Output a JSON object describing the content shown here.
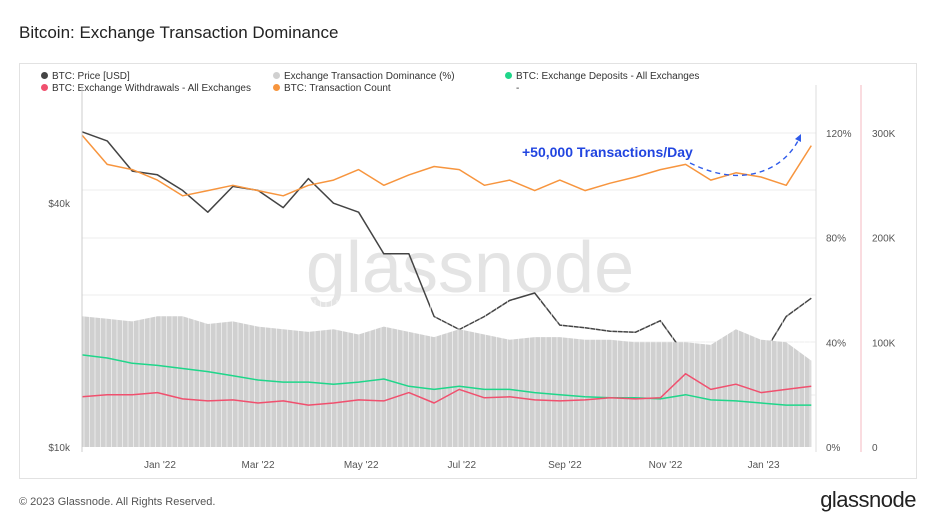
{
  "title": "Bitcoin: Exchange Transaction Dominance",
  "footer": "© 2023 Glassnode. All Rights Reserved.",
  "brand": "glassnode",
  "watermark": "glassnode",
  "annotation": "+50,000 Transactions/Day",
  "legend": [
    {
      "label": "BTC: Price [USD]",
      "color": "#444444"
    },
    {
      "label": "Exchange Transaction Dominance (%)",
      "color": "#d0d0d0"
    },
    {
      "label": "BTC: Exchange Deposits - All Exchanges",
      "color": "#1fd68a"
    },
    {
      "label": "BTC: Exchange Withdrawals - All Exchanges",
      "color": "#f0506e"
    },
    {
      "label": "BTC: Transaction Count",
      "color": "#f7953e"
    },
    {
      "label": "-",
      "color": ""
    }
  ],
  "chart_data": {
    "type": "line",
    "title": "Bitcoin: Exchange Transaction Dominance",
    "x_unit": "months since 2021-11-15",
    "x": [
      0,
      0.5,
      1,
      1.5,
      2,
      2.5,
      3,
      3.5,
      4,
      4.5,
      5,
      5.5,
      6,
      6.5,
      7,
      7.5,
      8,
      8.5,
      9,
      9.5,
      10,
      10.5,
      11,
      11.5,
      12,
      12.5,
      13,
      13.5,
      14,
      14.5
    ],
    "x_tick_labels": [
      {
        "t": 1.55,
        "label": "Jan '22"
      },
      {
        "t": 3.5,
        "label": "Mar '22"
      },
      {
        "t": 5.55,
        "label": "May '22"
      },
      {
        "t": 7.55,
        "label": "Jul '22"
      },
      {
        "t": 9.6,
        "label": "Sep '22"
      },
      {
        "t": 11.6,
        "label": "Nov '22"
      },
      {
        "t": 13.55,
        "label": "Jan '23"
      }
    ],
    "axes": {
      "price": {
        "scale": "log",
        "range": [
          10000,
          230000
        ],
        "ticks": [
          {
            "v": 10000,
            "label": "$10k"
          },
          {
            "v": 40000,
            "label": "$40k"
          }
        ]
      },
      "percent": {
        "range": [
          0,
          120
        ],
        "ticks": [
          {
            "v": 0,
            "label": "0%"
          },
          {
            "v": 40,
            "label": "40%"
          },
          {
            "v": 80,
            "label": "80%"
          },
          {
            "v": 120,
            "label": "120%"
          }
        ]
      },
      "count": {
        "range": [
          0,
          300000
        ],
        "ticks": [
          {
            "v": 0,
            "label": "0"
          },
          {
            "v": 100000,
            "label": "100K"
          },
          {
            "v": 200000,
            "label": "200K"
          },
          {
            "v": 300000,
            "label": "300K"
          }
        ]
      }
    },
    "series": [
      {
        "name": "BTC: Price [USD]",
        "axis": "price",
        "color": "#444444",
        "values": [
          60000,
          57000,
          48000,
          47000,
          43000,
          38000,
          44000,
          43000,
          39000,
          46000,
          40000,
          38000,
          30000,
          30000,
          21000,
          19500,
          21000,
          23000,
          24000,
          20000,
          19700,
          19300,
          19200,
          20500,
          16800,
          17000,
          17400,
          16600,
          21000,
          23300
        ]
      },
      {
        "name": "Exchange Transaction Dominance (%)",
        "axis": "percent",
        "color": "#d0d0d0",
        "type": "area",
        "values": [
          50,
          49,
          48,
          50,
          50,
          47,
          48,
          46,
          45,
          44,
          45,
          43,
          46,
          44,
          42,
          45,
          43,
          41,
          42,
          42,
          41,
          41,
          40,
          40,
          40,
          39,
          45,
          41,
          40,
          33
        ]
      },
      {
        "name": "BTC: Exchange Deposits - All Exchanges",
        "axis": "count",
        "color": "#1fd68a",
        "values": [
          88000,
          85000,
          80000,
          78000,
          75000,
          72000,
          68000,
          64000,
          62000,
          62000,
          60000,
          62000,
          65000,
          58000,
          55000,
          58000,
          55000,
          55000,
          52000,
          50000,
          48000,
          47000,
          47000,
          46000,
          50000,
          45000,
          44000,
          42000,
          40000,
          40000
        ]
      },
      {
        "name": "BTC: Exchange Withdrawals - All Exchanges",
        "axis": "count",
        "color": "#f0506e",
        "values": [
          48000,
          50000,
          50000,
          52000,
          46000,
          44000,
          45000,
          42000,
          44000,
          40000,
          42000,
          45000,
          44000,
          52000,
          42000,
          55000,
          47000,
          48000,
          45000,
          44000,
          45000,
          47000,
          46000,
          47000,
          70000,
          55000,
          60000,
          52000,
          55000,
          58000
        ]
      },
      {
        "name": "BTC: Transaction Count",
        "axis": "count",
        "color": "#f7953e",
        "values": [
          298000,
          270000,
          265000,
          255000,
          240000,
          245000,
          250000,
          245000,
          240000,
          250000,
          255000,
          265000,
          250000,
          260000,
          268000,
          265000,
          250000,
          255000,
          245000,
          255000,
          245000,
          252000,
          258000,
          265000,
          270000,
          255000,
          262000,
          258000,
          250000,
          288000
        ]
      }
    ],
    "grid": true,
    "legend_position": "top-left"
  }
}
